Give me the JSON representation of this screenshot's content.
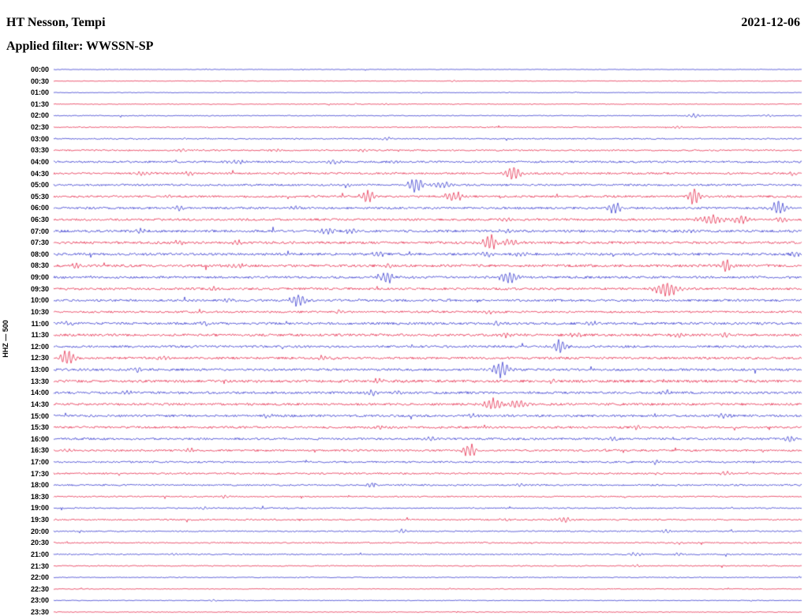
{
  "header": {
    "station": "HT Nesson, Tempi",
    "date": "2021-12-06",
    "filter_label": "Applied filter: WWSSN-SP"
  },
  "axis": {
    "left_label": "HHZ — 500"
  },
  "colors": {
    "blue": "#1f22c8",
    "red": "#e31238",
    "background": "#ffffff",
    "text": "#000000"
  },
  "chart_data": {
    "type": "line",
    "subtype": "seismogram-helicorder",
    "title": "HT Nesson, Tempi",
    "date": "2021-12-06",
    "filter": "WWSSN-SP",
    "channel": "HHZ",
    "gain_label": "HHZ — 500",
    "row_interval_minutes": 30,
    "trace_colors_alternate": [
      "blue",
      "red"
    ],
    "rows": [
      {
        "t": "00:00",
        "c": "blue",
        "n": 0.4,
        "ev": []
      },
      {
        "t": "00:30",
        "c": "red",
        "n": 0.4,
        "ev": [
          [
            575,
            1.5,
            3
          ]
        ]
      },
      {
        "t": "01:00",
        "c": "blue",
        "n": 0.4,
        "ev": []
      },
      {
        "t": "01:30",
        "c": "red",
        "n": 0.5,
        "ev": [
          [
            490,
            1.5,
            3
          ]
        ]
      },
      {
        "t": "02:00",
        "c": "blue",
        "n": 0.6,
        "ev": [
          [
            880,
            3,
            6
          ],
          [
            975,
            2,
            4
          ]
        ]
      },
      {
        "t": "02:30",
        "c": "red",
        "n": 0.6,
        "ev": [
          [
            860,
            2,
            4
          ]
        ]
      },
      {
        "t": "03:00",
        "c": "blue",
        "n": 0.8,
        "ev": [
          [
            490,
            2,
            5
          ]
        ]
      },
      {
        "t": "03:30",
        "c": "red",
        "n": 0.9,
        "ev": [
          [
            230,
            2.5,
            5
          ],
          [
            350,
            2,
            5
          ],
          [
            460,
            2,
            4
          ]
        ]
      },
      {
        "t": "04:00",
        "c": "blue",
        "n": 1.2,
        "ev": [
          [
            300,
            2.5,
            8
          ],
          [
            420,
            2.5,
            8
          ],
          [
            500,
            2,
            6
          ]
        ]
      },
      {
        "t": "04:30",
        "c": "red",
        "n": 1.2,
        "ev": [
          [
            180,
            3,
            8
          ],
          [
            240,
            3,
            6
          ],
          [
            650,
            11,
            7
          ],
          [
            1005,
            3,
            5
          ]
        ]
      },
      {
        "t": "05:00",
        "c": "blue",
        "n": 1.2,
        "ev": [
          [
            440,
            3,
            5
          ],
          [
            527,
            12,
            6
          ],
          [
            560,
            5,
            8
          ]
        ]
      },
      {
        "t": "05:30",
        "c": "red",
        "n": 1.3,
        "ev": [
          [
            215,
            3,
            5
          ],
          [
            466,
            9,
            6
          ],
          [
            575,
            7,
            9
          ],
          [
            880,
            12,
            5
          ]
        ]
      },
      {
        "t": "06:00",
        "c": "blue",
        "n": 1.3,
        "ev": [
          [
            225,
            3,
            6
          ],
          [
            375,
            3,
            5
          ],
          [
            778,
            9,
            6
          ],
          [
            987,
            11,
            6
          ]
        ]
      },
      {
        "t": "06:30",
        "c": "red",
        "n": 1.3,
        "ev": [
          [
            640,
            2.5,
            6
          ],
          [
            905,
            6,
            14
          ],
          [
            935,
            6,
            10
          ],
          [
            990,
            4,
            6
          ]
        ]
      },
      {
        "t": "07:00",
        "c": "blue",
        "n": 1.5,
        "ev": [
          [
            180,
            3,
            6
          ],
          [
            415,
            4,
            8
          ],
          [
            445,
            4,
            6
          ],
          [
            640,
            2.5,
            5
          ],
          [
            875,
            3,
            5
          ]
        ]
      },
      {
        "t": "07:30",
        "c": "red",
        "n": 1.5,
        "ev": [
          [
            225,
            3,
            6
          ],
          [
            300,
            3,
            5
          ],
          [
            620,
            11,
            7
          ],
          [
            645,
            5,
            8
          ]
        ]
      },
      {
        "t": "08:00",
        "c": "blue",
        "n": 1.5,
        "ev": [
          [
            480,
            3,
            6
          ],
          [
            620,
            3,
            8
          ],
          [
            660,
            3,
            6
          ],
          [
            1007,
            4,
            4
          ]
        ]
      },
      {
        "t": "08:30",
        "c": "red",
        "n": 1.6,
        "ev": [
          [
            95,
            3,
            6
          ],
          [
            300,
            3,
            6
          ],
          [
            490,
            3,
            5
          ],
          [
            920,
            9,
            5
          ]
        ]
      },
      {
        "t": "09:00",
        "c": "blue",
        "n": 1.4,
        "ev": [
          [
            490,
            8,
            6
          ],
          [
            645,
            10,
            7
          ]
        ]
      },
      {
        "t": "09:30",
        "c": "red",
        "n": 1.4,
        "ev": [
          [
            270,
            3,
            5
          ],
          [
            845,
            11,
            10
          ]
        ]
      },
      {
        "t": "10:00",
        "c": "blue",
        "n": 1.4,
        "ev": [
          [
            290,
            3,
            5
          ],
          [
            378,
            9,
            7
          ]
        ]
      },
      {
        "t": "10:30",
        "c": "red",
        "n": 1.2,
        "ev": [
          [
            430,
            3,
            5
          ],
          [
            620,
            2.5,
            5
          ]
        ]
      },
      {
        "t": "11:00",
        "c": "blue",
        "n": 1.5,
        "ev": [
          [
            85,
            3,
            6
          ],
          [
            260,
            3,
            5
          ],
          [
            630,
            3,
            5
          ],
          [
            750,
            3,
            6
          ]
        ]
      },
      {
        "t": "11:30",
        "c": "red",
        "n": 1.5,
        "ev": [
          [
            640,
            3,
            5
          ],
          [
            730,
            3,
            5
          ],
          [
            860,
            3,
            6
          ],
          [
            920,
            3,
            5
          ]
        ]
      },
      {
        "t": "12:00",
        "c": "blue",
        "n": 1.4,
        "ev": [
          [
            710,
            10,
            6
          ]
        ]
      },
      {
        "t": "12:30",
        "c": "red",
        "n": 1.4,
        "ev": [
          [
            85,
            11,
            7
          ],
          [
            205,
            3,
            5
          ],
          [
            410,
            3,
            6
          ]
        ]
      },
      {
        "t": "13:00",
        "c": "blue",
        "n": 1.4,
        "ev": [
          [
            175,
            3,
            5
          ],
          [
            635,
            11,
            8
          ]
        ]
      },
      {
        "t": "13:30",
        "c": "red",
        "n": 1.6,
        "ev": [
          [
            480,
            3,
            6
          ],
          [
            700,
            3,
            6
          ]
        ]
      },
      {
        "t": "14:00",
        "c": "blue",
        "n": 1.4,
        "ev": [
          [
            160,
            3,
            5
          ],
          [
            470,
            4,
            6
          ],
          [
            505,
            3,
            5
          ],
          [
            845,
            4,
            4
          ]
        ]
      },
      {
        "t": "14:30",
        "c": "red",
        "n": 1.4,
        "ev": [
          [
            625,
            8,
            9
          ],
          [
            655,
            6,
            8
          ]
        ]
      },
      {
        "t": "15:00",
        "c": "blue",
        "n": 1.4,
        "ev": [
          [
            340,
            3,
            5
          ],
          [
            600,
            3,
            5
          ],
          [
            920,
            4,
            6
          ]
        ]
      },
      {
        "t": "15:30",
        "c": "red",
        "n": 1.3,
        "ev": [
          [
            480,
            3,
            5
          ],
          [
            810,
            3,
            5
          ]
        ]
      },
      {
        "t": "16:00",
        "c": "blue",
        "n": 1.3,
        "ev": [
          [
            545,
            3,
            6
          ],
          [
            775,
            3,
            5
          ],
          [
            1000,
            5,
            6
          ]
        ]
      },
      {
        "t": "16:30",
        "c": "red",
        "n": 1.2,
        "ev": [
          [
            85,
            3,
            6
          ],
          [
            240,
            3,
            5
          ],
          [
            595,
            10,
            6
          ]
        ]
      },
      {
        "t": "17:00",
        "c": "blue",
        "n": 1.1,
        "ev": [
          [
            830,
            3,
            5
          ]
        ]
      },
      {
        "t": "17:30",
        "c": "red",
        "n": 1.0,
        "ev": [
          [
            920,
            3,
            5
          ]
        ]
      },
      {
        "t": "18:00",
        "c": "blue",
        "n": 1.0,
        "ev": [
          [
            470,
            2.5,
            5
          ],
          [
            660,
            2.5,
            5
          ]
        ]
      },
      {
        "t": "18:30",
        "c": "red",
        "n": 0.8,
        "ev": [
          [
            285,
            2,
            4
          ]
        ]
      },
      {
        "t": "19:00",
        "c": "blue",
        "n": 0.8,
        "ev": [
          [
            260,
            2.5,
            5
          ]
        ]
      },
      {
        "t": "19:30",
        "c": "red",
        "n": 0.9,
        "ev": [
          [
            640,
            2.5,
            5
          ],
          [
            715,
            4,
            6
          ]
        ]
      },
      {
        "t": "20:00",
        "c": "blue",
        "n": 0.8,
        "ev": [
          [
            510,
            3,
            4
          ],
          [
            845,
            2.5,
            4
          ]
        ]
      },
      {
        "t": "20:30",
        "c": "red",
        "n": 0.8,
        "ev": [
          [
            860,
            2,
            4
          ]
        ]
      },
      {
        "t": "21:00",
        "c": "blue",
        "n": 0.8,
        "ev": [
          [
            220,
            2,
            4
          ],
          [
            805,
            3,
            5
          ],
          [
            860,
            2.5,
            4
          ]
        ]
      },
      {
        "t": "21:30",
        "c": "red",
        "n": 0.7,
        "ev": [
          [
            805,
            2,
            4
          ]
        ]
      },
      {
        "t": "22:00",
        "c": "blue",
        "n": 0.6,
        "ev": []
      },
      {
        "t": "22:30",
        "c": "red",
        "n": 0.5,
        "ev": []
      },
      {
        "t": "23:00",
        "c": "blue",
        "n": 0.5,
        "ev": [
          [
            270,
            1.5,
            3
          ]
        ]
      },
      {
        "t": "23:30",
        "c": "red",
        "n": 0.5,
        "ev": []
      }
    ]
  }
}
